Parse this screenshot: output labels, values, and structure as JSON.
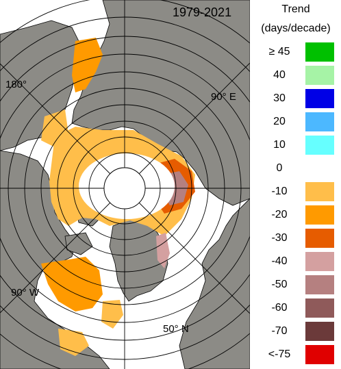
{
  "map": {
    "period": "1979-2021",
    "labels": {
      "lon_180": "180°",
      "lon_90e": "90° E",
      "lon_90w": "90° W",
      "lat_50n": "50° N"
    },
    "colors": {
      "land": "#8c8b86",
      "ocean": "#ffffff",
      "coast_line": "#000000",
      "grid_line": "#000000"
    }
  },
  "legend": {
    "title_line1": "Trend",
    "title_line2": "(days/decade)",
    "classes": [
      {
        "label": "≥ 45",
        "color": "#00c000"
      },
      {
        "label": "40",
        "color": "#a6f3a6"
      },
      {
        "label": "30",
        "color": "#0000e6"
      },
      {
        "label": "20",
        "color": "#4cb8ff"
      },
      {
        "label": "10",
        "color": "#66ffff"
      },
      {
        "label": "0",
        "color": "#ffffff"
      },
      {
        "label": "-10",
        "color": "#ffbe4a"
      },
      {
        "label": "-20",
        "color": "#ff9a00"
      },
      {
        "label": "-30",
        "color": "#e65c00"
      },
      {
        "label": "-40",
        "color": "#d4a0a0"
      },
      {
        "label": "-50",
        "color": "#b58080"
      },
      {
        "label": "-60",
        "color": "#8f5a5a"
      },
      {
        "label": "-70",
        "color": "#6b3a3a"
      },
      {
        "label": "<-75",
        "color": "#e00000"
      }
    ]
  }
}
